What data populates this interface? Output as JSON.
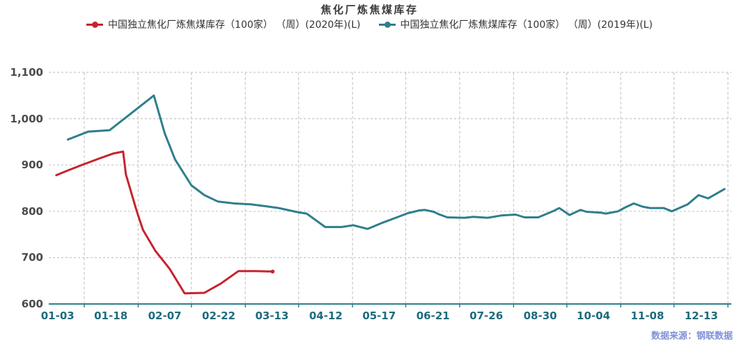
{
  "source_note": "数据来源：钢联数据",
  "colors": {
    "series_2020": "#c5242f",
    "series_2019": "#2e7f8c",
    "axis_line": "#2e7f8c",
    "x_tick_label": "#1d6b7c",
    "y_tick_label": "#4b4b4b",
    "grid_vertical": "#c9c9c9",
    "grid_horizontal": "#c6c6c6",
    "title_text": "#3b3b3b",
    "source_text": "#8092d8"
  },
  "chart_data": {
    "type": "line",
    "title": "焦化厂炼焦煤库存",
    "legend_position": "top",
    "ylim": [
      600,
      1100
    ],
    "y_ticks": [
      {
        "value": 600,
        "label": "600"
      },
      {
        "value": 700,
        "label": "700"
      },
      {
        "value": 800,
        "label": "800"
      },
      {
        "value": 900,
        "label": "900"
      },
      {
        "value": 1000,
        "label": "1,000"
      },
      {
        "value": 1100,
        "label": "1,100"
      }
    ],
    "x_ticks": [
      {
        "label": "01-03",
        "pos_pct": 1.3
      },
      {
        "label": "01-18",
        "pos_pct": 9.1
      },
      {
        "label": "02-07",
        "pos_pct": 17.0
      },
      {
        "label": "02-22",
        "pos_pct": 24.9
      },
      {
        "label": "03-13",
        "pos_pct": 32.7
      },
      {
        "label": "04-12",
        "pos_pct": 40.6
      },
      {
        "label": "05-17",
        "pos_pct": 48.4
      },
      {
        "label": "06-21",
        "pos_pct": 56.3
      },
      {
        "label": "07-26",
        "pos_pct": 64.1
      },
      {
        "label": "08-30",
        "pos_pct": 72.0
      },
      {
        "label": "10-04",
        "pos_pct": 79.8
      },
      {
        "label": "11-08",
        "pos_pct": 87.7
      },
      {
        "label": "12-13",
        "pos_pct": 95.6
      }
    ],
    "gridline_positions_pct": [
      5.2,
      13.1,
      20.9,
      28.8,
      36.6,
      44.5,
      52.3,
      60.2,
      68.1,
      75.9,
      83.8,
      91.6,
      99.5
    ],
    "series": [
      {
        "name": "中国独立焦化厂炼焦煤库存（100家） （周）(2020年)(L)",
        "color": "#c5242f",
        "end_marker": true,
        "points": [
          [
            1.1,
            878
          ],
          [
            3.1,
            890
          ],
          [
            5.2,
            902
          ],
          [
            7.4,
            914
          ],
          [
            9.5,
            925
          ],
          [
            10.9,
            929
          ],
          [
            11.3,
            880
          ],
          [
            12.9,
            800
          ],
          [
            13.8,
            760
          ],
          [
            15.6,
            715
          ],
          [
            17.7,
            676
          ],
          [
            19.9,
            623
          ],
          [
            22.8,
            624
          ],
          [
            25.2,
            644
          ],
          [
            27.8,
            671
          ],
          [
            30.3,
            671
          ],
          [
            32.8,
            670
          ]
        ]
      },
      {
        "name": "中国独立焦化厂炼焦煤库存（100家） （周）(2019年)(L)",
        "color": "#2e7f8c",
        "end_marker": false,
        "points": [
          [
            2.8,
            955
          ],
          [
            5.8,
            972
          ],
          [
            8.9,
            975
          ],
          [
            12.2,
            1013
          ],
          [
            15.4,
            1050
          ],
          [
            17.0,
            968
          ],
          [
            18.5,
            912
          ],
          [
            20.9,
            856
          ],
          [
            22.8,
            835
          ],
          [
            24.8,
            821
          ],
          [
            27.2,
            817
          ],
          [
            29.6,
            815
          ],
          [
            31.8,
            811
          ],
          [
            33.7,
            807
          ],
          [
            36.5,
            798
          ],
          [
            37.8,
            795
          ],
          [
            40.5,
            766
          ],
          [
            42.9,
            766
          ],
          [
            44.6,
            770
          ],
          [
            46.7,
            762
          ],
          [
            49.0,
            776
          ],
          [
            51.0,
            787
          ],
          [
            52.6,
            796
          ],
          [
            54.3,
            802
          ],
          [
            55.1,
            803
          ],
          [
            56.4,
            799
          ],
          [
            57.1,
            794
          ],
          [
            58.4,
            787
          ],
          [
            60.9,
            786
          ],
          [
            62.2,
            788
          ],
          [
            64.3,
            786
          ],
          [
            66.3,
            791
          ],
          [
            68.4,
            793
          ],
          [
            69.7,
            787
          ],
          [
            71.7,
            787
          ],
          [
            74.0,
            801
          ],
          [
            74.8,
            807
          ],
          [
            76.3,
            792
          ],
          [
            77.9,
            803
          ],
          [
            78.8,
            799
          ],
          [
            80.9,
            797
          ],
          [
            81.6,
            795
          ],
          [
            83.4,
            800
          ],
          [
            84.4,
            808
          ],
          [
            85.7,
            817
          ],
          [
            87.0,
            810
          ],
          [
            88.1,
            807
          ],
          [
            90.1,
            807
          ],
          [
            91.3,
            800
          ],
          [
            93.6,
            815
          ],
          [
            95.2,
            835
          ],
          [
            96.6,
            828
          ],
          [
            99.0,
            848
          ]
        ]
      }
    ]
  }
}
